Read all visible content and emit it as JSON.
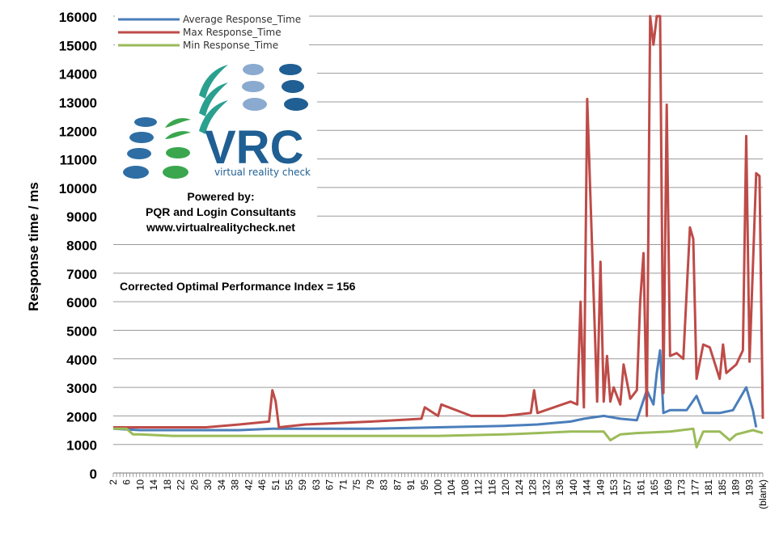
{
  "chart_data": {
    "type": "line",
    "ylabel": "Response time / ms",
    "ylim": [
      0,
      16000
    ],
    "y_ticks": [
      "0",
      "1000",
      "2000",
      "3000",
      "4000",
      "5000",
      "6000",
      "7000",
      "8000",
      "9000",
      "10000",
      "11000",
      "12000",
      "13000",
      "14000",
      "15000",
      "16000"
    ],
    "x_tick_labels": [
      "2",
      "6",
      "10",
      "14",
      "18",
      "22",
      "26",
      "30",
      "34",
      "38",
      "42",
      "46",
      "51",
      "55",
      "59",
      "63",
      "67",
      "71",
      "75",
      "79",
      "83",
      "87",
      "91",
      "95",
      "100",
      "104",
      "108",
      "112",
      "116",
      "120",
      "124",
      "128",
      "132",
      "136",
      "140",
      "144",
      "149",
      "153",
      "157",
      "161",
      "165",
      "169",
      "173",
      "177",
      "181",
      "185",
      "189",
      "193",
      "(blank)"
    ],
    "series": [
      {
        "name": "Average Response_Time",
        "color": "#4a7ebb",
        "x": [
          2,
          10,
          20,
          30,
          40,
          50,
          60,
          80,
          100,
          120,
          130,
          140,
          144,
          150,
          155,
          160,
          163,
          165,
          166,
          167,
          168,
          170,
          175,
          178,
          180,
          185,
          189,
          193,
          195,
          196
        ],
        "values": [
          1550,
          1500,
          1500,
          1500,
          1500,
          1550,
          1550,
          1550,
          1600,
          1650,
          1700,
          1800,
          1900,
          2000,
          1900,
          1850,
          2900,
          2400,
          3500,
          4300,
          2100,
          2200,
          2200,
          2700,
          2100,
          2100,
          2200,
          3000,
          2200,
          1600
        ]
      },
      {
        "name": "Max Response_Time",
        "color": "#be4b48",
        "x": [
          2,
          10,
          20,
          30,
          40,
          49,
          50,
          51,
          52,
          60,
          80,
          95,
          96,
          100,
          101,
          110,
          120,
          128,
          129,
          130,
          140,
          142,
          143,
          144,
          145,
          148,
          149,
          150,
          151,
          152,
          153,
          155,
          156,
          158,
          160,
          161,
          162,
          163,
          164,
          165,
          166,
          167,
          168,
          169,
          170,
          172,
          174,
          176,
          177,
          178,
          180,
          182,
          185,
          186,
          187,
          190,
          192,
          193,
          194,
          196,
          197,
          198
        ],
        "values": [
          1600,
          1600,
          1600,
          1600,
          1700,
          1800,
          2900,
          2500,
          1600,
          1700,
          1800,
          1900,
          2300,
          2000,
          2400,
          2000,
          2000,
          2100,
          2900,
          2100,
          2500,
          2400,
          6000,
          2300,
          13100,
          2500,
          7400,
          2500,
          4100,
          2500,
          3000,
          2400,
          3800,
          2600,
          2900,
          6000,
          7700,
          2000,
          16000,
          15000,
          16000,
          16000,
          2800,
          12900,
          4100,
          4200,
          4000,
          8600,
          8200,
          3300,
          4500,
          4400,
          3300,
          4500,
          3500,
          3800,
          4300,
          11800,
          3900,
          10500,
          10400,
          1900
        ]
      },
      {
        "name": "Min Response_Time",
        "color": "#9bbb59",
        "x": [
          2,
          6,
          8,
          10,
          20,
          30,
          40,
          50,
          60,
          80,
          100,
          120,
          130,
          140,
          150,
          152,
          155,
          160,
          170,
          177,
          178,
          180,
          185,
          188,
          190,
          195,
          198
        ],
        "values": [
          1550,
          1550,
          1350,
          1350,
          1300,
          1300,
          1300,
          1300,
          1300,
          1300,
          1300,
          1350,
          1400,
          1450,
          1450,
          1150,
          1350,
          1400,
          1450,
          1550,
          900,
          1450,
          1450,
          1150,
          1350,
          1500,
          1400
        ]
      }
    ],
    "legend_position": "top-left",
    "grid": true
  },
  "logo": {
    "wordmark": "VRC",
    "subtitle": "virtual reality check"
  },
  "powered": {
    "line1": "Powered by:",
    "line2": "PQR and Login Consultants",
    "line3": "www.virtualrealitycheck.net"
  },
  "annotation": "Corrected Optimal Performance Index = 156"
}
